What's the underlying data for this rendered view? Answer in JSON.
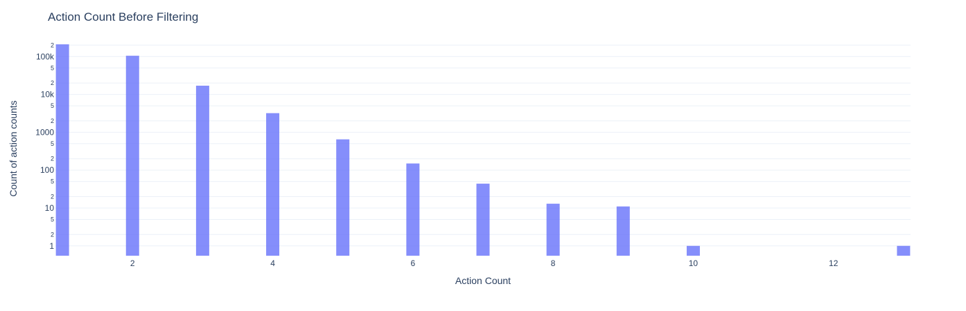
{
  "chart_data": {
    "type": "bar",
    "title": "Action Count Before Filtering",
    "xlabel": "Action Count",
    "ylabel": "Count of action counts",
    "yscale": "log",
    "ylim": [
      0.55,
      250000
    ],
    "xlim": [
      0.9,
      13.1
    ],
    "x_ticks": [
      2,
      4,
      6,
      8,
      10,
      12
    ],
    "y_major_ticks": [
      {
        "value": 1,
        "label": "1"
      },
      {
        "value": 10,
        "label": "10"
      },
      {
        "value": 100,
        "label": "100"
      },
      {
        "value": 1000,
        "label": "1000"
      },
      {
        "value": 10000,
        "label": "10k"
      },
      {
        "value": 100000,
        "label": "100k"
      }
    ],
    "y_minor_ticks": [
      {
        "value": 2,
        "label": "2"
      },
      {
        "value": 5,
        "label": "5"
      },
      {
        "value": 20,
        "label": "2"
      },
      {
        "value": 50,
        "label": "5"
      },
      {
        "value": 200,
        "label": "2"
      },
      {
        "value": 500,
        "label": "5"
      },
      {
        "value": 2000,
        "label": "2"
      },
      {
        "value": 5000,
        "label": "5"
      },
      {
        "value": 20000,
        "label": "2"
      },
      {
        "value": 50000,
        "label": "5"
      },
      {
        "value": 200000,
        "label": "2"
      }
    ],
    "x": [
      1,
      2,
      3,
      4,
      5,
      6,
      7,
      8,
      9,
      10,
      11,
      12,
      13
    ],
    "values": [
      210000,
      105000,
      17000,
      3200,
      650,
      150,
      44,
      13,
      11,
      1,
      0,
      0,
      1
    ],
    "grid": true,
    "bar_color": "#636efa"
  }
}
